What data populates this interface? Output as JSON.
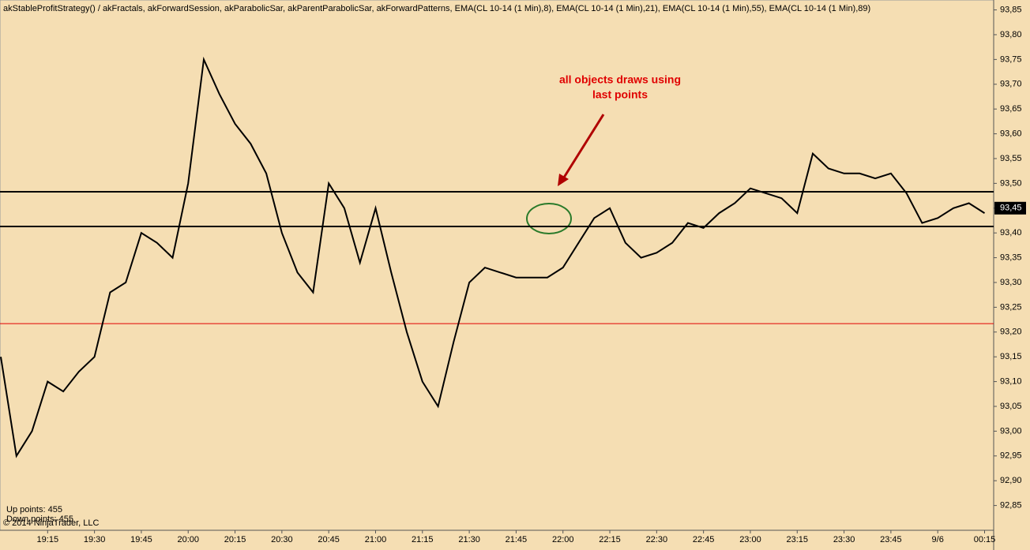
{
  "chart_data": {
    "type": "line",
    "title": "akStableProfitStrategy() / akFractals, akForwardSession, akParabolicSar, akParentParabolicSar, akForwardPatterns, EMA(CL 10-14 (1 Min),8), EMA(CL 10-14 (1 Min),21), EMA(CL 10-14 (1 Min),55), EMA(CL 10-14 (1 Min),89)",
    "annotation": [
      "all objects draws using",
      "last points"
    ],
    "stats": [
      "Up points: 455",
      "Down points: 455"
    ],
    "copyright": "© 2014 NinjaTrader, LLC",
    "categories": [
      null,
      null,
      null,
      "19:15",
      null,
      null,
      "19:30",
      null,
      null,
      "19:45",
      null,
      null,
      "20:00",
      null,
      null,
      "20:15",
      null,
      null,
      "20:30",
      null,
      null,
      "20:45",
      null,
      null,
      "21:00",
      null,
      null,
      "21:15",
      null,
      null,
      "21:30",
      null,
      null,
      "21:45",
      null,
      null,
      "22:00",
      null,
      null,
      "22:15",
      null,
      null,
      "22:30",
      null,
      null,
      "22:45",
      null,
      null,
      "23:00",
      null,
      null,
      "23:15",
      null,
      null,
      "23:30",
      null,
      null,
      "23:45",
      null,
      null,
      "9/6",
      null,
      null,
      "00:15"
    ],
    "values": [
      93.15,
      92.95,
      93.0,
      93.1,
      93.08,
      93.12,
      93.15,
      93.28,
      93.3,
      93.4,
      93.38,
      93.35,
      93.5,
      93.75,
      93.68,
      93.62,
      93.58,
      93.52,
      93.4,
      93.32,
      93.28,
      93.5,
      93.45,
      93.34,
      93.45,
      93.32,
      93.2,
      93.1,
      93.05,
      93.18,
      93.3,
      93.33,
      93.32,
      93.31,
      93.31,
      93.31,
      93.33,
      93.38,
      93.43,
      93.45,
      93.38,
      93.35,
      93.36,
      93.38,
      93.42,
      93.41,
      93.44,
      93.46,
      93.49,
      93.48,
      93.47,
      93.44,
      93.56,
      93.53,
      93.52,
      93.52,
      93.51,
      93.52,
      93.48,
      93.42,
      93.43,
      93.45,
      93.46,
      93.44
    ],
    "color": "#000000",
    "hlines": [
      {
        "value": 93.483,
        "color": "#000000"
      },
      {
        "value": 93.413,
        "color": "#000000"
      },
      {
        "value": 93.217,
        "color": "#e00000"
      }
    ],
    "current_price": {
      "value": 93.45,
      "label": "93,45"
    },
    "ylim": [
      92.8,
      93.87
    ],
    "yticks": [
      {
        "value": 92.85,
        "label": "92,85"
      },
      {
        "value": 92.9,
        "label": "92,90"
      },
      {
        "value": 92.95,
        "label": "92,95"
      },
      {
        "value": 93.0,
        "label": "93,00"
      },
      {
        "value": 93.05,
        "label": "93,05"
      },
      {
        "value": 93.1,
        "label": "93,10"
      },
      {
        "value": 93.15,
        "label": "93,15"
      },
      {
        "value": 93.2,
        "label": "93,20"
      },
      {
        "value": 93.25,
        "label": "93,25"
      },
      {
        "value": 93.3,
        "label": "93,30"
      },
      {
        "value": 93.35,
        "label": "93,35"
      },
      {
        "value": 93.4,
        "label": "93,40"
      },
      {
        "value": 93.45,
        "label": "93,45"
      },
      {
        "value": 93.5,
        "label": "93,50"
      },
      {
        "value": 93.55,
        "label": "93,55"
      },
      {
        "value": 93.6,
        "label": "93,60"
      },
      {
        "value": 93.65,
        "label": "93,65"
      },
      {
        "value": 93.7,
        "label": "93,70"
      },
      {
        "value": 93.75,
        "label": "93,75"
      },
      {
        "value": 93.8,
        "label": "93,80"
      },
      {
        "value": 93.85,
        "label": "93,85"
      }
    ]
  }
}
